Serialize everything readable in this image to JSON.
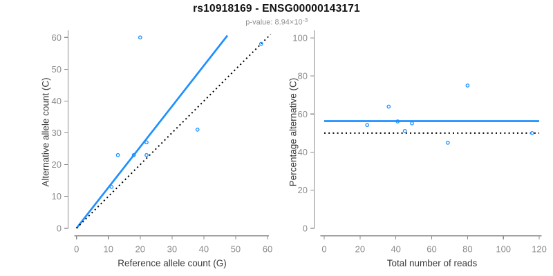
{
  "header": {
    "title": "rs10918169 - ENSG00000143171",
    "pvalue_prefix": "p-value: 8.94×10",
    "pvalue_exponent": "-3"
  },
  "colors": {
    "background": "#FFFFFF",
    "accent_blue": "#1E90FF",
    "line_black": "#000000",
    "axis_gray": "#8B8B8B",
    "tick_label_gray": "#8B8B8B",
    "axis_title_dark": "#3A3A3A",
    "title_black": "#111111",
    "subtitle_gray": "#8F8F8F"
  },
  "chart_data": [
    {
      "type": "scatter",
      "title": "",
      "xlabel": "Reference allele count (G)",
      "ylabel": "Alternative allele count (C)",
      "xlim": [
        0,
        60
      ],
      "ylim": [
        0,
        60
      ],
      "xticks": [
        0,
        10,
        20,
        30,
        40,
        50,
        60
      ],
      "yticks": [
        0,
        10,
        20,
        30,
        40,
        50,
        60
      ],
      "grid": false,
      "legend": null,
      "point_style": "open-circle",
      "points": [
        [
          20,
          60
        ],
        [
          58,
          58
        ],
        [
          38,
          31
        ],
        [
          22,
          27
        ],
        [
          13,
          23
        ],
        [
          18,
          23
        ],
        [
          22,
          23
        ],
        [
          11,
          13
        ]
      ],
      "lines": [
        {
          "name": "fit-line",
          "style": "solid",
          "color": "#1E90FF",
          "slope": 1.277,
          "intercept": 0,
          "x1": 0,
          "y1": 0,
          "x2": 47.4,
          "y2": 60.6
        },
        {
          "name": "identity-line",
          "style": "dotted",
          "color": "#000000",
          "slope": 1,
          "intercept": 0,
          "x1": 0,
          "y1": 0,
          "x2": 61,
          "y2": 61
        }
      ]
    },
    {
      "type": "scatter",
      "title": "",
      "xlabel": "Total number of reads",
      "ylabel": "Percentage alternative (C)",
      "xlim": [
        0,
        120
      ],
      "ylim": [
        0,
        100
      ],
      "xticks": [
        0,
        20,
        40,
        60,
        80,
        100,
        120
      ],
      "yticks": [
        0,
        20,
        40,
        60,
        80,
        100
      ],
      "grid": false,
      "legend": null,
      "point_style": "open-circle",
      "points": [
        [
          80,
          75
        ],
        [
          36,
          63.9
        ],
        [
          41,
          56.1
        ],
        [
          49,
          55.1
        ],
        [
          24,
          54.2
        ],
        [
          45,
          51.1
        ],
        [
          116,
          50
        ],
        [
          69,
          44.9
        ]
      ],
      "lines": [
        {
          "name": "mean-line",
          "style": "solid",
          "color": "#1E90FF",
          "x1": 0,
          "y1": 56.3,
          "x2": 120,
          "y2": 56.3
        },
        {
          "name": "reference-line",
          "style": "dotted",
          "color": "#000000",
          "x1": 0,
          "y1": 50,
          "x2": 120,
          "y2": 50
        }
      ]
    }
  ]
}
